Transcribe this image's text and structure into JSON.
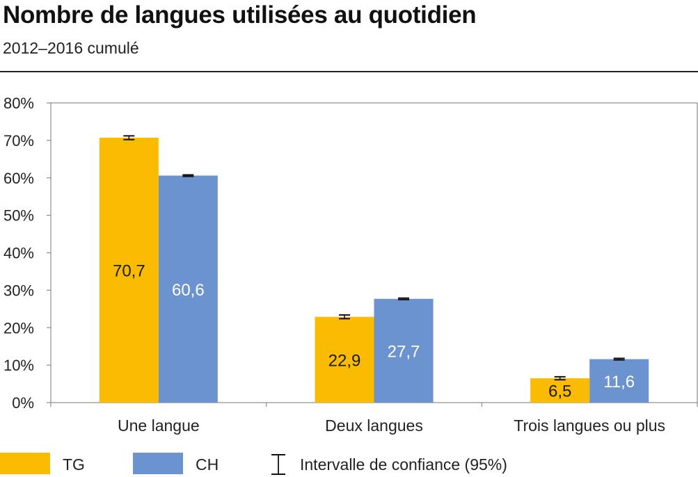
{
  "title": "Nombre de langues utilisées au quotidien",
  "subtitle": "2012–2016 cumulé",
  "chart_data": {
    "type": "bar",
    "categories": [
      "Une langue",
      "Deux langues",
      "Trois langues ou plus"
    ],
    "series": [
      {
        "name": "TG",
        "values": [
          70.7,
          22.9,
          6.5
        ],
        "value_labels": [
          "70,7",
          "22,9",
          "6,5"
        ],
        "ci": [
          [
            70.2,
            71.2
          ],
          [
            22.4,
            23.4
          ],
          [
            6.1,
            6.9
          ]
        ],
        "color": "#fbbb00",
        "label_color": "#1a1a1a"
      },
      {
        "name": "CH",
        "values": [
          60.6,
          27.7,
          11.6
        ],
        "value_labels": [
          "60,6",
          "27,7",
          "11,6"
        ],
        "ci": [
          [
            60.4,
            60.8
          ],
          [
            27.5,
            27.9
          ],
          [
            11.4,
            11.8
          ]
        ],
        "color": "#6b93cf",
        "label_color": "#ffffff"
      }
    ],
    "ylim": [
      0,
      80
    ],
    "yticks": [
      "0%",
      "10%",
      "20%",
      "30%",
      "40%",
      "50%",
      "60%",
      "70%",
      "80%"
    ],
    "grid": false,
    "legend_position": "bottom",
    "legend_ci_label": "Intervalle de confiance (95%)"
  }
}
